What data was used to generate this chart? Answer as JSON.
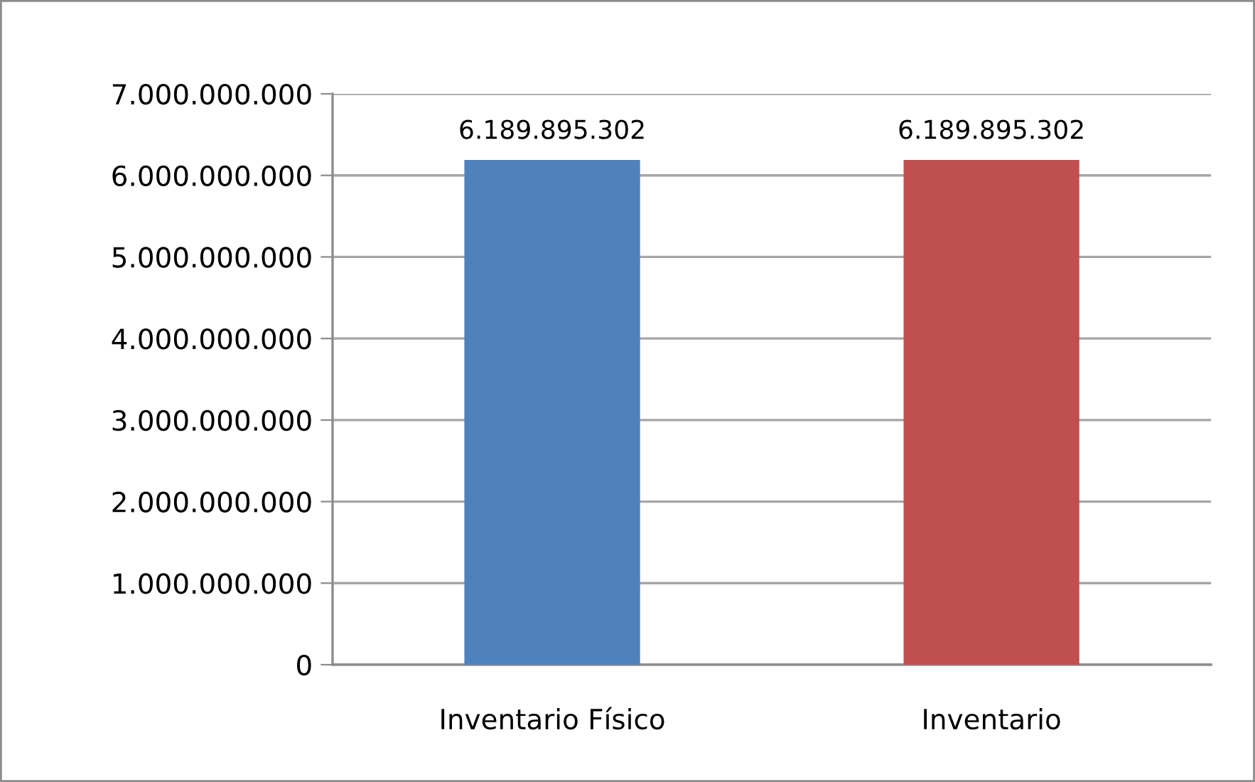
{
  "chart_data": {
    "type": "bar",
    "categories": [
      "Inventario Físico",
      "Inventario"
    ],
    "values": [
      6189895302,
      6189895302
    ],
    "colors": [
      "#4f81bd",
      "#c0504d"
    ],
    "value_labels": [
      "6.189.895.302",
      "6.189.895.302"
    ],
    "ylim": [
      0,
      7000000000
    ],
    "yticks": [
      {
        "value": 0,
        "label": "0"
      },
      {
        "value": 1000000000,
        "label": "1.000.000.000"
      },
      {
        "value": 2000000000,
        "label": "2.000.000.000"
      },
      {
        "value": 3000000000,
        "label": "3.000.000.000"
      },
      {
        "value": 4000000000,
        "label": "4.000.000.000"
      },
      {
        "value": 5000000000,
        "label": "5.000.000.000"
      },
      {
        "value": 6000000000,
        "label": "6.000.000.000"
      },
      {
        "value": 7000000000,
        "label": "7.000.000.000"
      }
    ],
    "grid": "y",
    "legend": false
  }
}
